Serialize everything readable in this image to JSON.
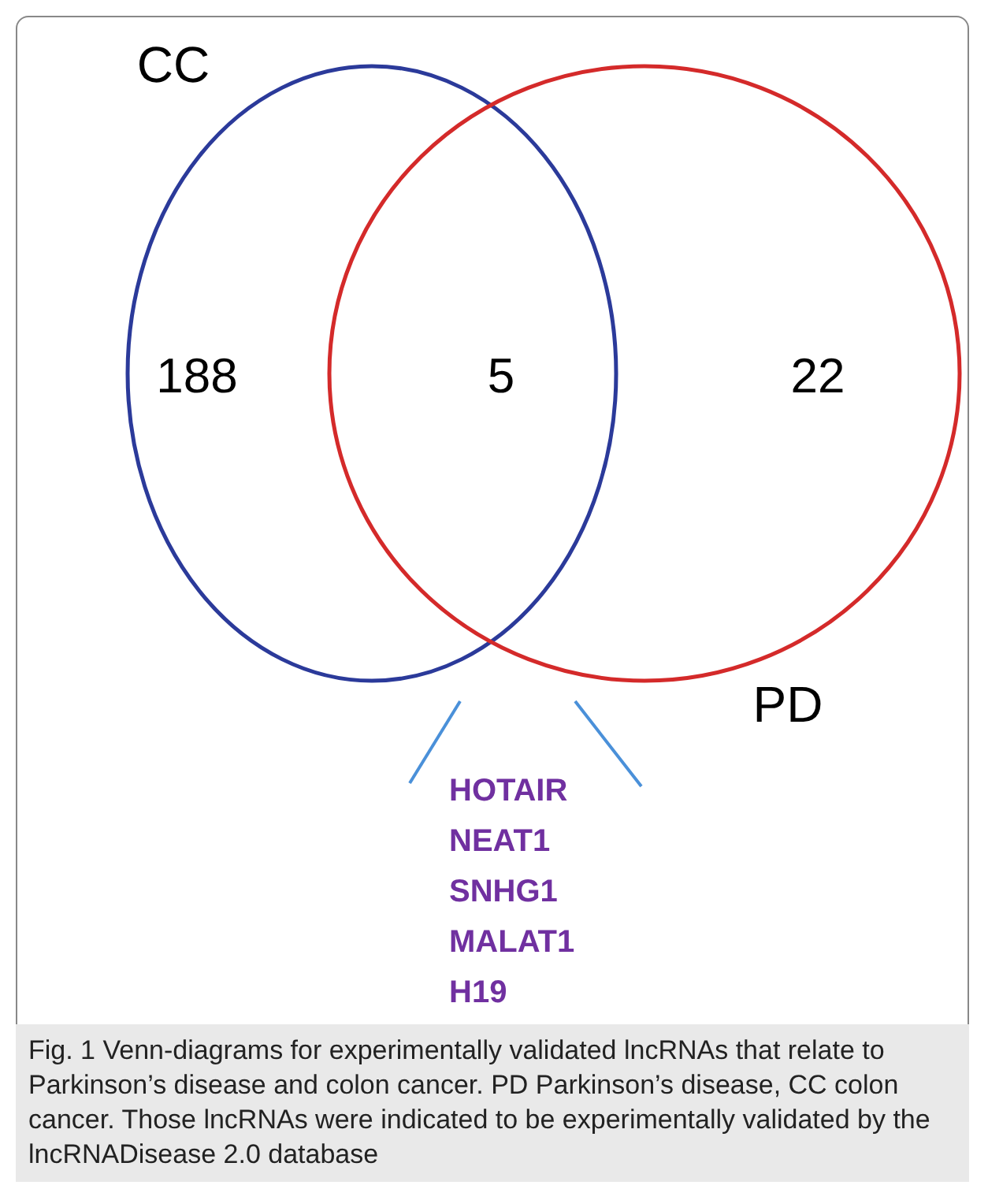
{
  "chart_data": {
    "type": "other",
    "categories": [
      null,
      null,
      null
    ],
    "values": [
      188,
      5,
      22
    ],
    "data_labels": true,
    "annotations": [
      "CC",
      "PD",
      {
        "text": "HOTAIR"
      },
      {
        "text": "NEAT1"
      },
      {
        "text": "SNHG1"
      },
      {
        "text": "MALAT1"
      },
      {
        "text": "H19"
      },
      "Fig. 1  Venn-diagrams for experimentally validated lncRNAs that relate to Parkinson’s disease and colon cancer. PD Parkinson’s disease, CC colon cancer. Those lncRNAs were indicated to be experimentally validated by the lncRNADisease 2.0 database"
    ]
  }
}
